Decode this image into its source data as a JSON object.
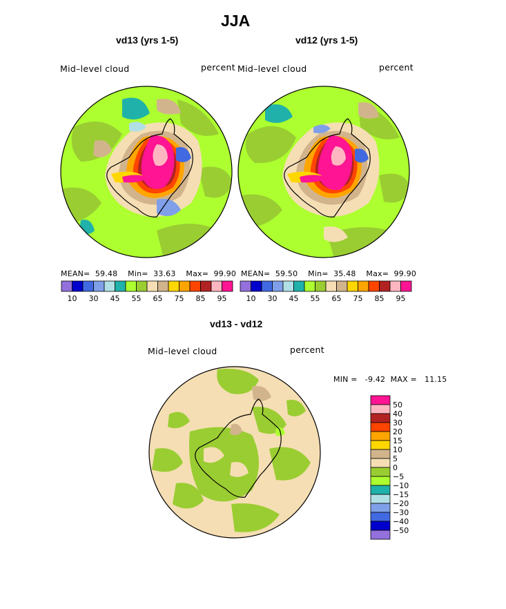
{
  "figure": {
    "title": "JJA",
    "variable_label": "Mid–level cloud",
    "units_label": "percent"
  },
  "chart_data": [
    {
      "type": "heatmap",
      "projection": "south-polar stereographic",
      "title": "vd13 (yrs 1-5)",
      "left_label": "Mid–level cloud",
      "right_label": "percent",
      "stats": {
        "mean_label": "MEAN=",
        "mean": "59.48",
        "min_label": "Min=",
        "min": "33.63",
        "max_label": "Max=",
        "max": "99.90"
      },
      "colorbar": {
        "orientation": "horizontal",
        "levels": [
          10,
          20,
          30,
          40,
          45,
          50,
          55,
          60,
          65,
          70,
          75,
          80,
          85,
          90,
          95
        ],
        "tick_labels": [
          "10",
          "30",
          "45",
          "55",
          "65",
          "75",
          "85",
          "95"
        ],
        "colors": [
          "#9370db",
          "#0000cd",
          "#4169e1",
          "#7fa0e8",
          "#b0e0e6",
          "#20b2aa",
          "#adff2f",
          "#9acd32",
          "#f5deb3",
          "#d2b48c",
          "#ffd700",
          "#ffa500",
          "#ff4500",
          "#b22222",
          "#ffb6c1",
          "#ff1493"
        ]
      }
    },
    {
      "type": "heatmap",
      "projection": "south-polar stereographic",
      "title": "vd12 (yrs 1-5)",
      "left_label": "Mid–level cloud",
      "right_label": "percent",
      "stats": {
        "mean_label": "MEAN=",
        "mean": "59.50",
        "min_label": "Min=",
        "min": "35.48",
        "max_label": "Max=",
        "max": "99.90"
      },
      "colorbar": {
        "orientation": "horizontal",
        "levels": [
          10,
          20,
          30,
          40,
          45,
          50,
          55,
          60,
          65,
          70,
          75,
          80,
          85,
          90,
          95
        ],
        "tick_labels": [
          "10",
          "30",
          "45",
          "55",
          "65",
          "75",
          "85",
          "95"
        ],
        "colors": [
          "#9370db",
          "#0000cd",
          "#4169e1",
          "#7fa0e8",
          "#b0e0e6",
          "#20b2aa",
          "#adff2f",
          "#9acd32",
          "#f5deb3",
          "#d2b48c",
          "#ffd700",
          "#ffa500",
          "#ff4500",
          "#b22222",
          "#ffb6c1",
          "#ff1493"
        ]
      }
    },
    {
      "type": "heatmap",
      "projection": "south-polar stereographic",
      "title": "vd13 - vd12",
      "left_label": "Mid–level cloud",
      "right_label": "percent",
      "stats": {
        "min_label": "MIN =",
        "min": "-9.42",
        "max_label": "MAX =",
        "max": "11.15"
      },
      "colorbar": {
        "orientation": "vertical",
        "levels": [
          50,
          40,
          30,
          20,
          15,
          10,
          5,
          0,
          -5,
          -10,
          -15,
          -20,
          -30,
          -40,
          -50
        ],
        "tick_labels": [
          "50",
          "40",
          "30",
          "20",
          "15",
          "10",
          "5",
          "0",
          "−5",
          "−10",
          "−15",
          "−20",
          "−30",
          "−40",
          "−50"
        ],
        "colors": [
          "#ff1493",
          "#ffb6c1",
          "#b22222",
          "#ff4500",
          "#ffa500",
          "#ffd700",
          "#d2b48c",
          "#f5deb3",
          "#9acd32",
          "#adff2f",
          "#20b2aa",
          "#b0e0e6",
          "#7fa0e8",
          "#4169e1",
          "#0000cd",
          "#9370db"
        ]
      }
    }
  ]
}
